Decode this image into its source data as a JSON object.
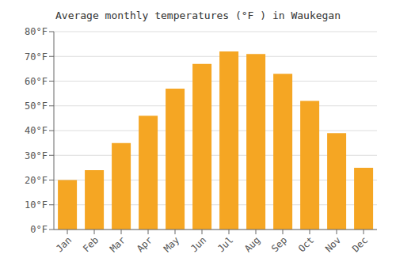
{
  "chart_data": {
    "type": "bar",
    "title": "Average monthly temperatures (°F ) in Waukegan",
    "categories": [
      "Jan",
      "Feb",
      "Mar",
      "Apr",
      "May",
      "Jun",
      "Jul",
      "Aug",
      "Sep",
      "Oct",
      "Nov",
      "Dec"
    ],
    "values": [
      20,
      24,
      35,
      46,
      57,
      67,
      72,
      71,
      63,
      52,
      39,
      25
    ],
    "color": "#F5A623",
    "ylim": [
      0,
      80
    ],
    "yticks": [
      {
        "value": 0,
        "label": "0°F"
      },
      {
        "value": 10,
        "label": "10°F"
      },
      {
        "value": 20,
        "label": "20°F"
      },
      {
        "value": 30,
        "label": "30°F"
      },
      {
        "value": 40,
        "label": "40°F"
      },
      {
        "value": 50,
        "label": "50°F"
      },
      {
        "value": 60,
        "label": "60°F"
      },
      {
        "value": 70,
        "label": "70°F"
      },
      {
        "value": 80,
        "label": "80°F"
      }
    ],
    "grid": true
  }
}
